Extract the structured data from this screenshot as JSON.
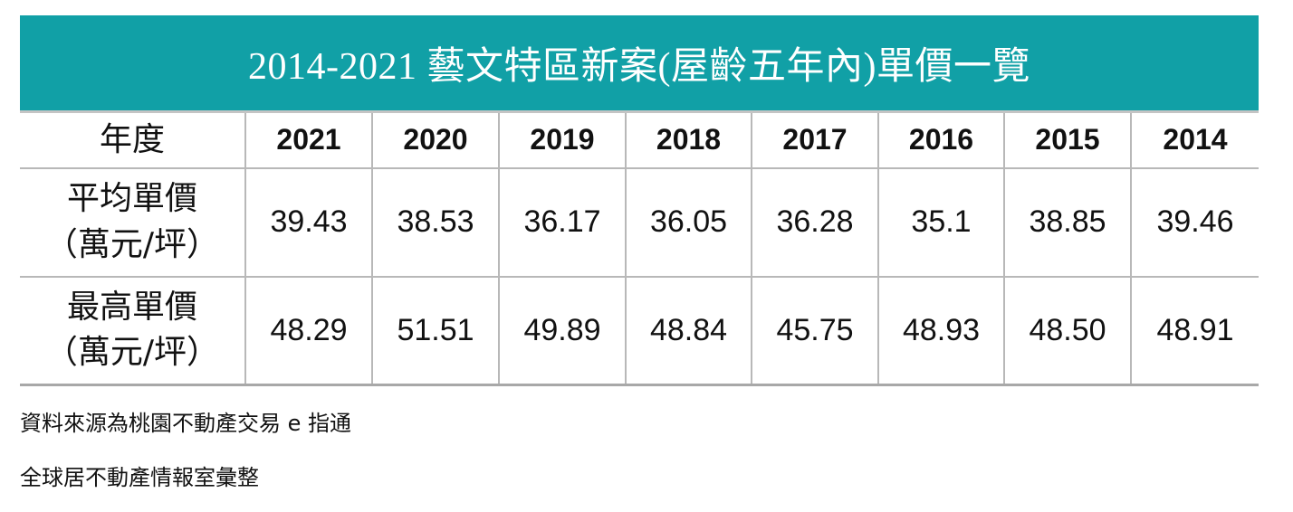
{
  "title": "2014-2021 藝文特區新案(屋齡五年內)單價一覽",
  "table": {
    "year_label": "年度",
    "years": [
      "2021",
      "2020",
      "2019",
      "2018",
      "2017",
      "2016",
      "2015",
      "2014"
    ],
    "rows": [
      {
        "label_line1": "平均單價",
        "label_line2": "（萬元/坪）",
        "values": [
          "39.43",
          "38.53",
          "36.17",
          "36.05",
          "36.28",
          "35.1",
          "38.85",
          "39.46"
        ]
      },
      {
        "label_line1": "最高單價",
        "label_line2": "（萬元/坪）",
        "values": [
          "48.29",
          "51.51",
          "49.89",
          "48.84",
          "45.75",
          "48.93",
          "48.50",
          "48.91"
        ]
      }
    ]
  },
  "footnotes": {
    "source": "資料來源為桃園不動產交易 e 指通",
    "compiled_by": "全球居不動產情報室彙整"
  },
  "colors": {
    "banner": "#11a0a6",
    "banner_text": "#ffffff",
    "grid": "#b8b8b8"
  }
}
